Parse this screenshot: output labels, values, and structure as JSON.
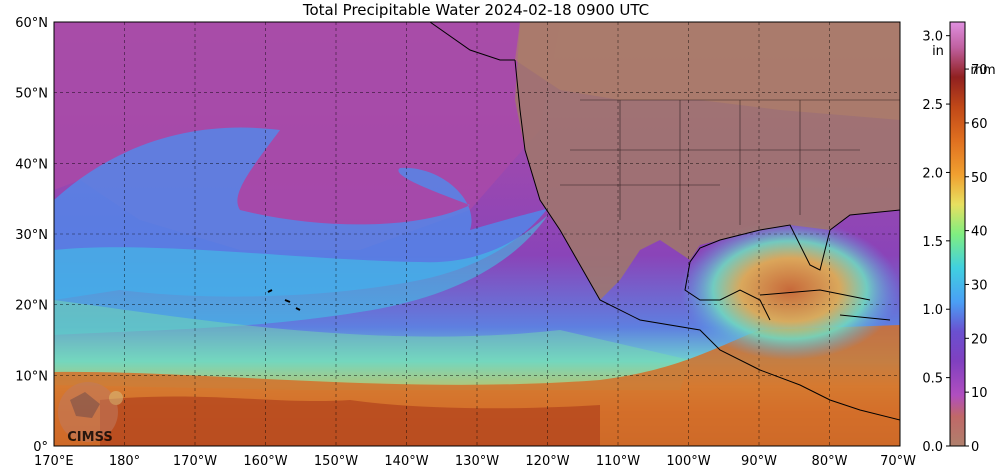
{
  "title": "Total Precipitable Water  2024-02-18 0900 UTC",
  "map": {
    "lat_labels": [
      "60°N",
      "50°N",
      "40°N",
      "30°N",
      "20°N",
      "10°N",
      "0°"
    ],
    "lon_labels": [
      "170°E",
      "180°",
      "170°W",
      "160°W",
      "150°W",
      "140°W",
      "130°W",
      "120°W",
      "110°W",
      "100°W",
      "90°W",
      "80°W",
      "70°W"
    ],
    "lat_range": [
      0,
      60
    ],
    "lon_range": [
      170,
      290
    ],
    "grid": true,
    "watermark": "CIMSS"
  },
  "colorbar": {
    "in_label": "in",
    "mm_label": "mm",
    "in_ticks": [
      "0.0",
      "0.5",
      "1.0",
      "1.5",
      "2.0",
      "2.5",
      "3.0"
    ],
    "mm_ticks": [
      "0",
      "10",
      "20",
      "30",
      "40",
      "50",
      "60",
      "70"
    ],
    "in_range": [
      0,
      3.1
    ],
    "colors": [
      "#b0806c",
      "#c06868",
      "#b04ec0",
      "#8040c0",
      "#6a50d0",
      "#4a9ff5",
      "#40d0e0",
      "#80ee80",
      "#e8e060",
      "#f0a030",
      "#e07020",
      "#c04818",
      "#902020",
      "#c060a0",
      "#e090e0"
    ]
  }
}
